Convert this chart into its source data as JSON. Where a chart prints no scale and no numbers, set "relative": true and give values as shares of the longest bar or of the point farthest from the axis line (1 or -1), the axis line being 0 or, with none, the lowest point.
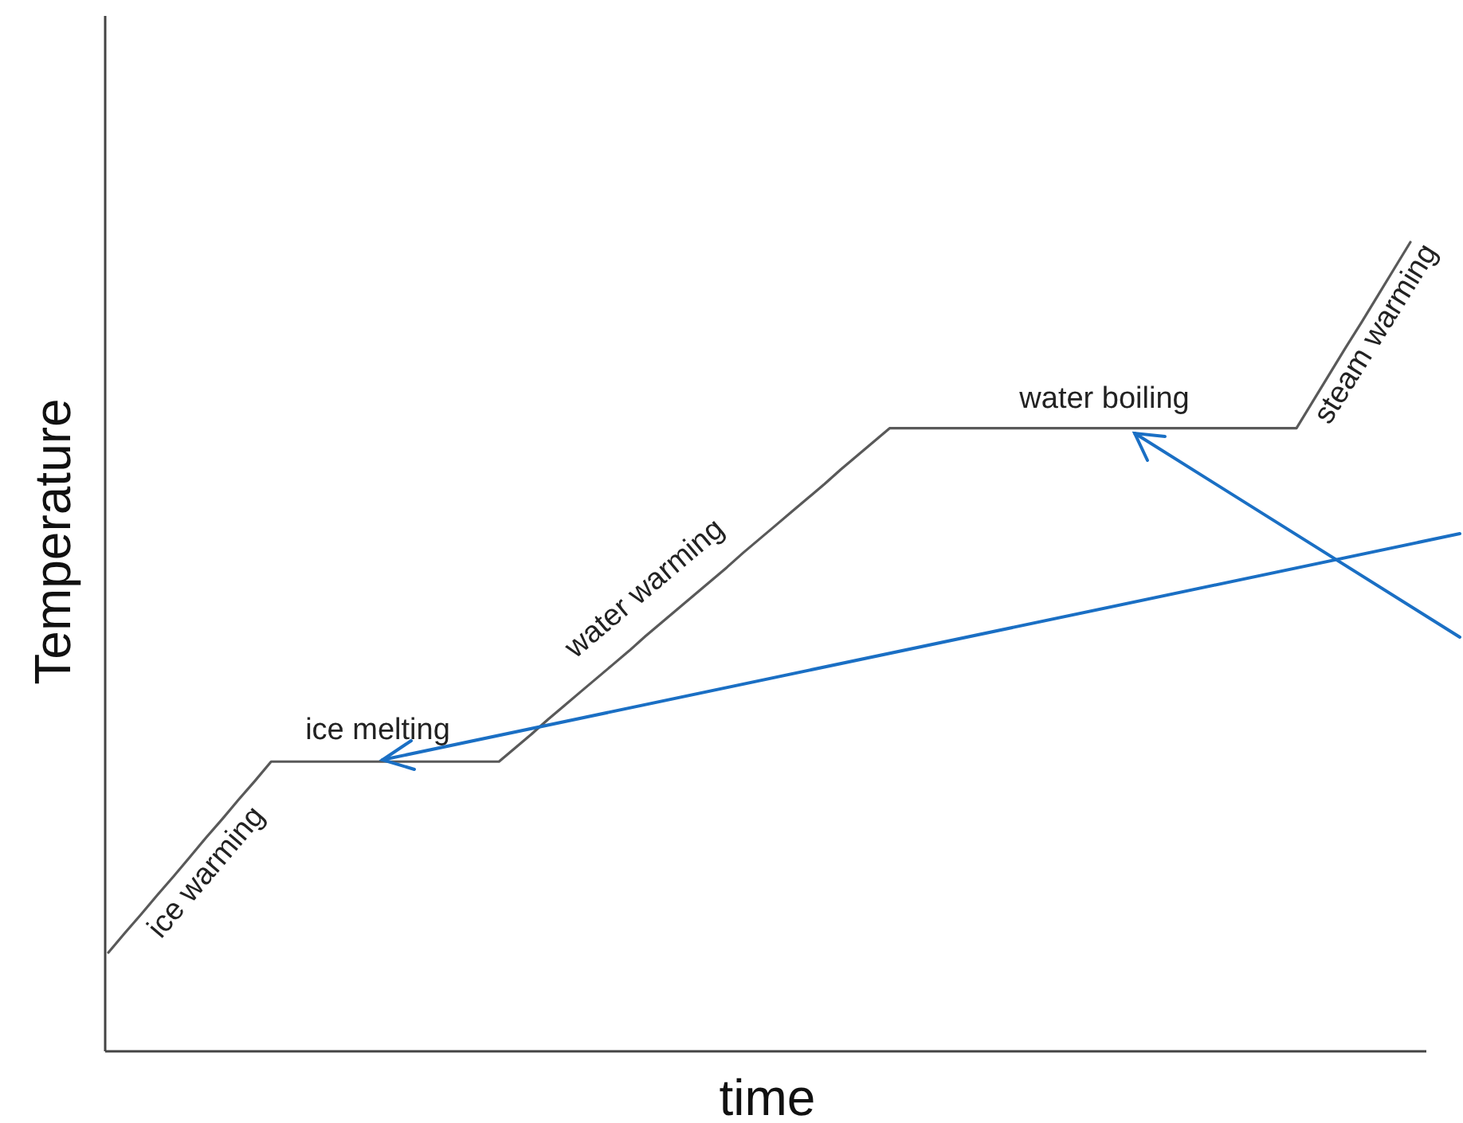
{
  "chart_data": {
    "type": "line",
    "relative": true,
    "xlabel": "time",
    "ylabel": "Temperature",
    "categories": [
      null,
      null,
      null,
      null,
      null,
      null,
      null,
      null,
      null,
      null,
      null,
      null,
      null,
      null,
      null,
      null,
      null,
      null,
      null,
      null,
      null,
      null,
      null,
      null,
      null,
      null,
      null,
      null,
      null,
      null,
      null,
      null,
      null,
      null,
      null,
      null,
      null,
      null,
      null,
      null,
      null,
      null,
      null,
      null,
      null,
      null,
      null,
      null,
      null,
      null,
      null,
      null,
      null,
      null,
      null,
      null,
      null,
      null,
      null,
      null,
      null,
      null,
      null,
      null,
      null,
      null,
      null,
      null,
      null,
      null,
      null,
      null,
      null,
      null,
      null,
      null,
      null,
      null,
      null,
      null,
      null
    ],
    "series": [
      {
        "color": "#595959",
        "values": [
          0.122,
          0.146,
          0.169,
          0.193,
          0.216,
          0.24,
          0.264,
          0.287,
          0.311,
          0.334,
          0.358,
          0.358,
          0.358,
          0.358,
          0.358,
          0.358,
          0.358,
          0.358,
          0.358,
          0.358,
          0.358,
          0.358,
          0.358,
          0.358,
          0.358,
          0.375,
          0.392,
          0.41,
          0.427,
          0.444,
          0.461,
          0.478,
          0.495,
          0.513,
          0.53,
          0.547,
          0.564,
          0.581,
          0.598,
          0.616,
          0.633,
          0.65,
          0.667,
          0.684,
          0.701,
          0.719,
          0.736,
          0.753,
          0.77,
          0.77,
          0.77,
          0.77,
          0.77,
          0.77,
          0.77,
          0.77,
          0.77,
          0.77,
          0.77,
          0.77,
          0.77,
          0.77,
          0.77,
          0.77,
          0.77,
          0.77,
          0.77,
          0.77,
          0.77,
          0.77,
          0.77,
          0.77,
          0.77,
          0.77,
          0.803,
          0.836,
          0.869,
          0.901,
          0.934,
          0.967,
          1
        ]
      }
    ],
    "annotations": [
      "ice warming",
      "ice melting",
      "water warming",
      "water boiling",
      "steam warming"
    ]
  }
}
